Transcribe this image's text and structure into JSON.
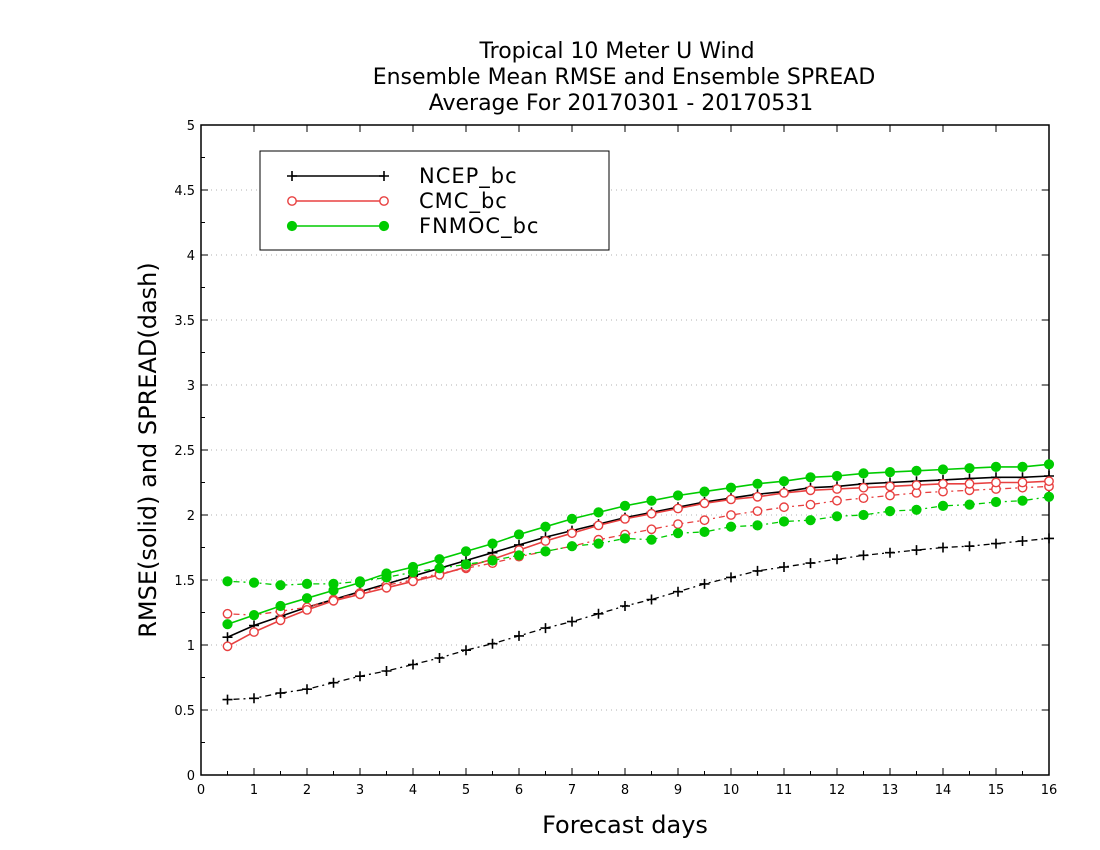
{
  "chart_data": {
    "type": "line",
    "title_lines": [
      "Tropical 10 Meter U Wind",
      "Ensemble Mean RMSE and Ensemble SPREAD",
      "Average For 20170301 - 20170531"
    ],
    "xlabel": "Forecast days",
    "ylabel": "RMSE(solid) and SPREAD(dash)",
    "xlim": [
      0,
      16
    ],
    "ylim": [
      0,
      5
    ],
    "x_ticks": [
      "0",
      "1",
      "2",
      "3",
      "4",
      "5",
      "6",
      "7",
      "8",
      "9",
      "10",
      "11",
      "12",
      "13",
      "14",
      "15",
      "16"
    ],
    "y_ticks": [
      "0",
      "0.5",
      "1",
      "1.5",
      "2",
      "2.5",
      "3",
      "3.5",
      "4",
      "4.5",
      "5"
    ],
    "grid": "horizontal dotted",
    "legend_position": "top-left",
    "x": [
      0.5,
      1,
      1.5,
      2,
      2.5,
      3,
      3.5,
      4,
      4.5,
      5,
      5.5,
      6,
      6.5,
      7,
      7.5,
      8,
      8.5,
      9,
      9.5,
      10,
      10.5,
      11,
      11.5,
      12,
      12.5,
      13,
      13.5,
      14,
      14.5,
      15,
      15.5,
      16
    ],
    "series": [
      {
        "name": "NCEP_bc",
        "color": "#000000",
        "marker": "plus",
        "rmse": [
          1.06,
          1.15,
          1.22,
          1.29,
          1.35,
          1.41,
          1.47,
          1.53,
          1.59,
          1.65,
          1.71,
          1.77,
          1.83,
          1.88,
          1.93,
          1.98,
          2.02,
          2.06,
          2.1,
          2.13,
          2.16,
          2.18,
          2.21,
          2.22,
          2.24,
          2.25,
          2.26,
          2.27,
          2.28,
          2.29,
          2.29,
          2.3
        ],
        "spread": [
          0.58,
          0.59,
          0.63,
          0.66,
          0.71,
          0.76,
          0.8,
          0.85,
          0.9,
          0.96,
          1.01,
          1.07,
          1.13,
          1.18,
          1.24,
          1.3,
          1.35,
          1.41,
          1.47,
          1.52,
          1.57,
          1.6,
          1.63,
          1.66,
          1.69,
          1.71,
          1.73,
          1.75,
          1.76,
          1.78,
          1.8,
          1.82
        ]
      },
      {
        "name": "CMC_bc",
        "color": "#e84040",
        "marker": "open-circle",
        "rmse": [
          0.99,
          1.1,
          1.19,
          1.27,
          1.34,
          1.39,
          1.44,
          1.49,
          1.54,
          1.6,
          1.66,
          1.73,
          1.8,
          1.86,
          1.92,
          1.97,
          2.01,
          2.05,
          2.09,
          2.12,
          2.14,
          2.17,
          2.19,
          2.2,
          2.21,
          2.22,
          2.23,
          2.24,
          2.24,
          2.25,
          2.25,
          2.26
        ],
        "spread": [
          1.24,
          1.23,
          1.26,
          1.29,
          1.35,
          1.4,
          1.46,
          1.5,
          1.55,
          1.59,
          1.63,
          1.68,
          1.72,
          1.76,
          1.81,
          1.85,
          1.89,
          1.93,
          1.96,
          2.0,
          2.03,
          2.06,
          2.08,
          2.11,
          2.13,
          2.15,
          2.17,
          2.18,
          2.19,
          2.2,
          2.21,
          2.22
        ]
      },
      {
        "name": "FNMOC_bc",
        "color": "#00cc00",
        "marker": "filled-circle",
        "rmse": [
          1.16,
          1.23,
          1.3,
          1.36,
          1.42,
          1.48,
          1.55,
          1.6,
          1.66,
          1.72,
          1.78,
          1.85,
          1.91,
          1.97,
          2.02,
          2.07,
          2.11,
          2.15,
          2.18,
          2.21,
          2.24,
          2.26,
          2.29,
          2.3,
          2.32,
          2.33,
          2.34,
          2.35,
          2.36,
          2.37,
          2.37,
          2.39
        ],
        "spread": [
          1.49,
          1.48,
          1.46,
          1.47,
          1.47,
          1.49,
          1.52,
          1.56,
          1.59,
          1.62,
          1.65,
          1.69,
          1.72,
          1.76,
          1.78,
          1.82,
          1.81,
          1.86,
          1.87,
          1.91,
          1.92,
          1.95,
          1.96,
          1.99,
          2.0,
          2.03,
          2.04,
          2.07,
          2.08,
          2.1,
          2.11,
          2.14
        ]
      }
    ]
  }
}
